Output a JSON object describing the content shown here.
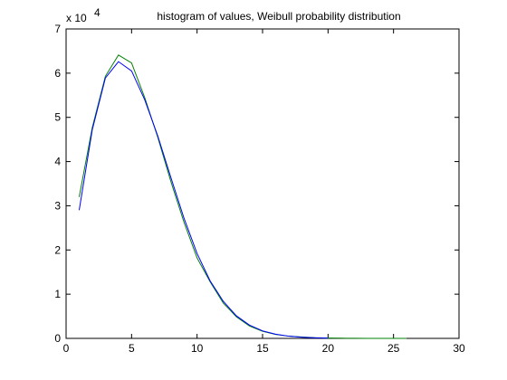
{
  "chart_data": {
    "type": "line",
    "title": "histogram of values, Weibull probability distribution",
    "xlabel": "",
    "ylabel": "",
    "xlim": [
      0,
      30
    ],
    "ylim": [
      0,
      70000
    ],
    "xticks": [
      0,
      5,
      10,
      15,
      20,
      25,
      30
    ],
    "yticks": [
      0,
      1,
      2,
      3,
      4,
      5,
      6,
      7
    ],
    "y_multiplier_label": "x 10",
    "y_multiplier_exponent": "4",
    "grid": false,
    "legend": "none",
    "series": [
      {
        "color": "#008000",
        "x": [
          1,
          2,
          3,
          4,
          5,
          6,
          7,
          8,
          9,
          10,
          11,
          12,
          13,
          14,
          15,
          16,
          17,
          18,
          19,
          20,
          21,
          22,
          23,
          24,
          25,
          26
        ],
        "values": [
          32000,
          47700,
          59300,
          64100,
          62300,
          54500,
          45500,
          35500,
          26300,
          18200,
          12800,
          8000,
          4900,
          2800,
          1600,
          900,
          500,
          300,
          150,
          80,
          40,
          20,
          10,
          5,
          3,
          1
        ]
      },
      {
        "color": "#0000ff",
        "x": [
          1,
          2,
          3,
          4,
          5,
          6,
          7,
          8,
          9,
          10,
          11,
          12,
          13,
          14,
          15,
          16,
          17,
          18,
          19,
          20
        ],
        "values": [
          29000,
          47200,
          58900,
          62600,
          60500,
          54000,
          45800,
          36400,
          27200,
          19200,
          13000,
          8400,
          5100,
          3000,
          1700,
          950,
          500,
          250,
          120,
          50
        ]
      }
    ]
  }
}
